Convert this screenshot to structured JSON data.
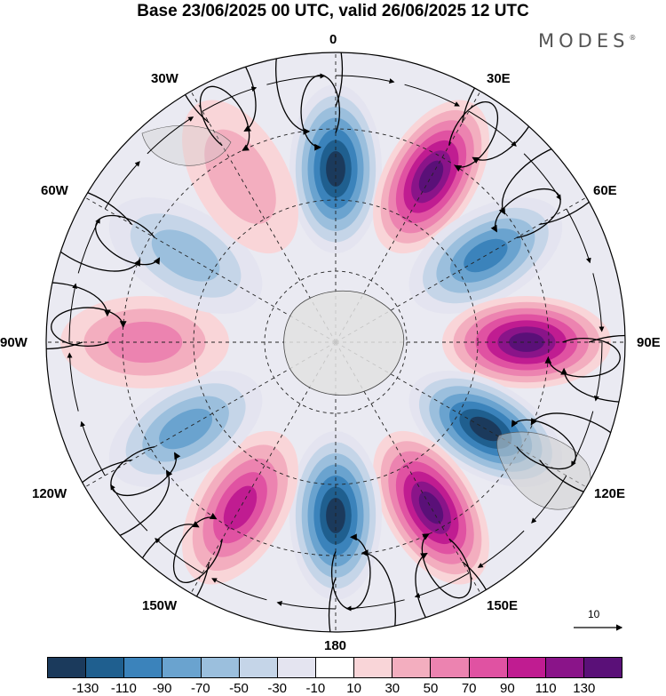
{
  "title": "Base 23/06/2025 00 UTC, valid 26/06/2025 12 UTC",
  "brand": "MODES",
  "brand_mark": "®",
  "longitude_labels": [
    "0",
    "30E",
    "60E",
    "90E",
    "120E",
    "150E",
    "180",
    "150W",
    "120W",
    "90W",
    "60W",
    "30W"
  ],
  "colorbar": {
    "colors": [
      "#1b3a5c",
      "#1f5f8f",
      "#3b83bb",
      "#6aa3cf",
      "#9bbfdd",
      "#c5d5e8",
      "#e4e4f0",
      "#ffffff",
      "#f9d5d8",
      "#f3aebf",
      "#ec83b0",
      "#e052a2",
      "#c01c91",
      "#8a1489",
      "#5a1078"
    ],
    "tick_labels": [
      "-130",
      "-110",
      "-90",
      "-70",
      "-50",
      "-30",
      "-10",
      "10",
      "30",
      "50",
      "70",
      "90",
      "110",
      "130"
    ]
  },
  "reference_vector_label": "10",
  "anomaly_cells": [
    {
      "kind": "neg",
      "level": 6
    },
    {
      "kind": "pos",
      "level": 6
    },
    {
      "kind": "neg",
      "level": 4
    },
    {
      "kind": "pos",
      "level": 6
    },
    {
      "kind": "neg",
      "level": 6
    },
    {
      "kind": "pos",
      "level": 6
    },
    {
      "kind": "neg",
      "level": 6
    },
    {
      "kind": "pos",
      "level": 4
    },
    {
      "kind": "neg",
      "level": 3
    },
    {
      "kind": "pos",
      "level": 2
    },
    {
      "kind": "neg",
      "level": 2
    },
    {
      "kind": "pos",
      "level": 1
    }
  ]
}
